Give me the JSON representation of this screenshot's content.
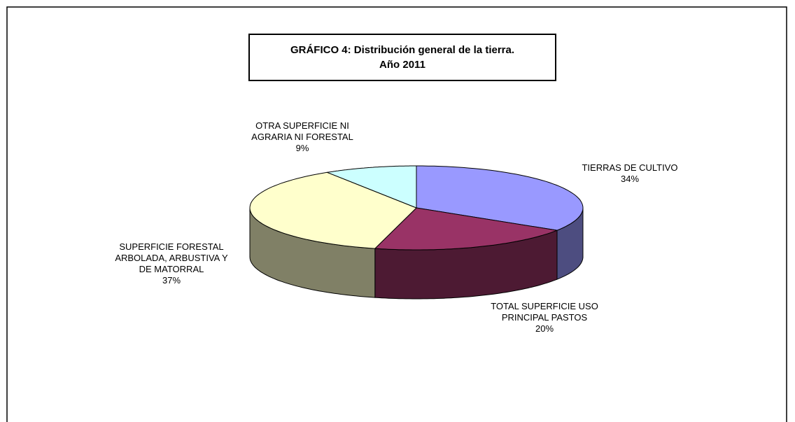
{
  "chart_data": {
    "type": "pie3d",
    "title": "GRÁFICO 4: Distribución general de la tierra.\nAño 2011",
    "categories": [
      "TIERRAS DE CULTIVO",
      "TOTAL SUPERFICIE USO\nPRINCIPAL PASTOS",
      "SUPERFICIE FORESTAL\nARBOLADA, ARBUSTIVA Y\nDE MATORRAL",
      "OTRA SUPERFICIE NI\nAGRARIA NI FORESTAL"
    ],
    "values": [
      34,
      20,
      37,
      9
    ],
    "value_labels": [
      "34%",
      "20%",
      "37%",
      "9%"
    ],
    "colors": [
      "#9999ff",
      "#993366",
      "#ffffcc",
      "#ccffff"
    ]
  }
}
